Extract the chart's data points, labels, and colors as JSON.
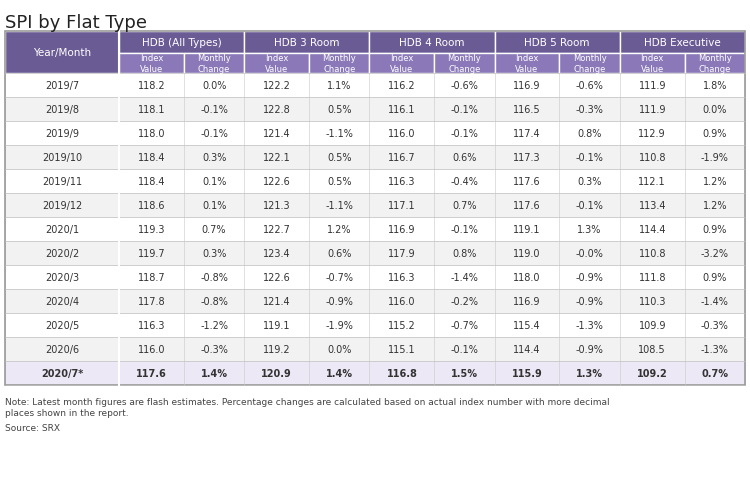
{
  "title": "SPI by Flat Type",
  "rows": [
    [
      "2019/7",
      "118.2",
      "0.0%",
      "122.2",
      "1.1%",
      "116.2",
      "-0.6%",
      "116.9",
      "-0.6%",
      "111.9",
      "1.8%"
    ],
    [
      "2019/8",
      "118.1",
      "-0.1%",
      "122.8",
      "0.5%",
      "116.1",
      "-0.1%",
      "116.5",
      "-0.3%",
      "111.9",
      "0.0%"
    ],
    [
      "2019/9",
      "118.0",
      "-0.1%",
      "121.4",
      "-1.1%",
      "116.0",
      "-0.1%",
      "117.4",
      "0.8%",
      "112.9",
      "0.9%"
    ],
    [
      "2019/10",
      "118.4",
      "0.3%",
      "122.1",
      "0.5%",
      "116.7",
      "0.6%",
      "117.3",
      "-0.1%",
      "110.8",
      "-1.9%"
    ],
    [
      "2019/11",
      "118.4",
      "0.1%",
      "122.6",
      "0.5%",
      "116.3",
      "-0.4%",
      "117.6",
      "0.3%",
      "112.1",
      "1.2%"
    ],
    [
      "2019/12",
      "118.6",
      "0.1%",
      "121.3",
      "-1.1%",
      "117.1",
      "0.7%",
      "117.6",
      "-0.1%",
      "113.4",
      "1.2%"
    ],
    [
      "2020/1",
      "119.3",
      "0.7%",
      "122.7",
      "1.2%",
      "116.9",
      "-0.1%",
      "119.1",
      "1.3%",
      "114.4",
      "0.9%"
    ],
    [
      "2020/2",
      "119.7",
      "0.3%",
      "123.4",
      "0.6%",
      "117.9",
      "0.8%",
      "119.0",
      "-0.0%",
      "110.8",
      "-3.2%"
    ],
    [
      "2020/3",
      "118.7",
      "-0.8%",
      "122.6",
      "-0.7%",
      "116.3",
      "-1.4%",
      "118.0",
      "-0.9%",
      "111.8",
      "0.9%"
    ],
    [
      "2020/4",
      "117.8",
      "-0.8%",
      "121.4",
      "-0.9%",
      "116.0",
      "-0.2%",
      "116.9",
      "-0.9%",
      "110.3",
      "-1.4%"
    ],
    [
      "2020/5",
      "116.3",
      "-1.2%",
      "119.1",
      "-1.9%",
      "115.2",
      "-0.7%",
      "115.4",
      "-1.3%",
      "109.9",
      "-0.3%"
    ],
    [
      "2020/6",
      "116.0",
      "-0.3%",
      "119.2",
      "0.0%",
      "115.1",
      "-0.1%",
      "114.4",
      "-0.9%",
      "108.5",
      "-1.3%"
    ],
    [
      "2020/7*",
      "117.6",
      "1.4%",
      "120.9",
      "1.4%",
      "116.8",
      "1.5%",
      "115.9",
      "1.3%",
      "109.2",
      "0.7%"
    ]
  ],
  "note1": "Note: Latest month figures are flash estimates. Percentage changes are calculated based on actual index number with more decimal",
  "note2": "places shown in the report.",
  "source": "Source: SRX",
  "header_bg": "#6b5b95",
  "subheader_bg": "#8b78b8",
  "header_text": "#ffffff",
  "row_bg_odd": "#ffffff",
  "row_bg_even": "#f2f2f2",
  "last_row_bg": "#ede8f5",
  "border_color": "#c8c8c8",
  "title_color": "#222222",
  "data_color": "#333333",
  "groups": [
    {
      "label": "HDB (All Types)",
      "cols": [
        1,
        2
      ]
    },
    {
      "label": "HDB 3 Room",
      "cols": [
        3,
        4
      ]
    },
    {
      "label": "HDB 4 Room",
      "cols": [
        5,
        6
      ]
    },
    {
      "label": "HDB 5 Room",
      "cols": [
        7,
        8
      ]
    },
    {
      "label": "HDB Executive",
      "cols": [
        9,
        10
      ]
    }
  ],
  "sub_labels": [
    "Index\nValue",
    "Monthly\nChange"
  ],
  "col_widths_rel": [
    1.55,
    0.88,
    0.82,
    0.88,
    0.82,
    0.88,
    0.82,
    0.88,
    0.82,
    0.88,
    0.82
  ]
}
